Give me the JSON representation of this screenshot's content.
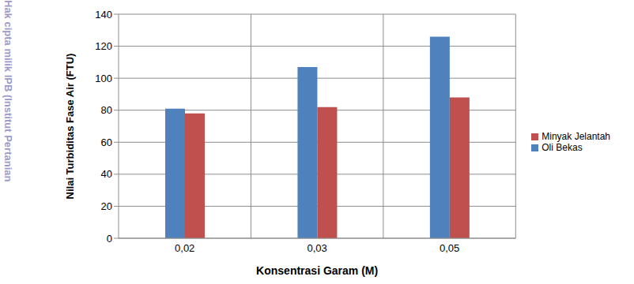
{
  "chart_data": {
    "type": "bar",
    "categories": [
      "0,02",
      "0,03",
      "0,05"
    ],
    "series": [
      {
        "name": "Oli Bekas",
        "color": "#4f81bd",
        "values": [
          81,
          107,
          126
        ]
      },
      {
        "name": "Minyak Jelantah",
        "color": "#c0504d",
        "values": [
          78,
          82,
          88
        ]
      }
    ],
    "x_label": "Konsentrasi Garam (M)",
    "y_label": "Nilai Turbiditas Fase Air  (FTU)",
    "ylim": [
      0,
      140
    ],
    "yticks": [
      0,
      20,
      40,
      60,
      80,
      100,
      120,
      140
    ],
    "grid": true,
    "legend": "right",
    "annotations": [
      "Hak cipta milik IPB (Institut Pertanian"
    ]
  }
}
